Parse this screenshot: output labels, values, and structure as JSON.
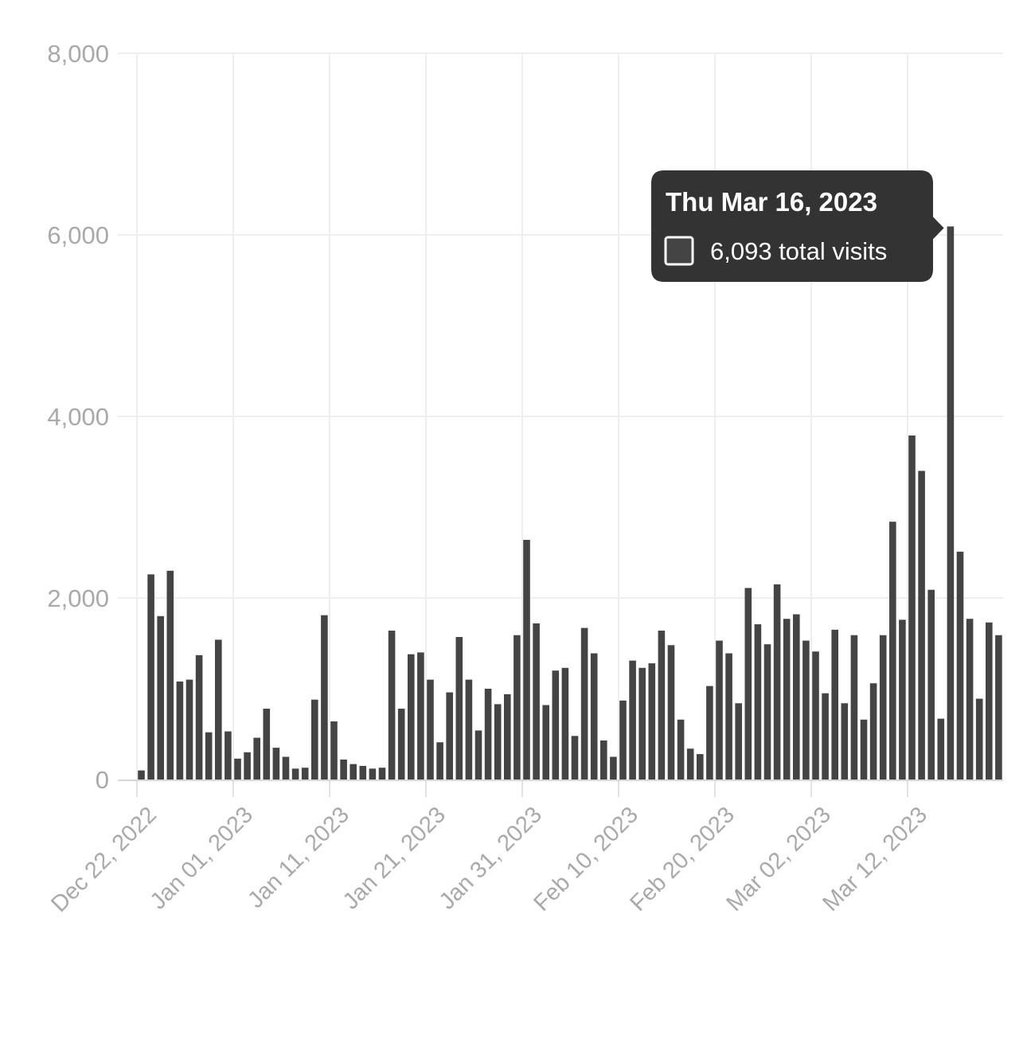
{
  "chart_data": {
    "type": "bar",
    "title": "",
    "xlabel": "",
    "ylabel": "",
    "ylim": [
      0,
      8000
    ],
    "y_ticks": [
      0,
      2000,
      4000,
      6000,
      8000
    ],
    "y_tick_labels": [
      "0",
      "2,000",
      "4,000",
      "6,000",
      "8,000"
    ],
    "x_tick_labels": [
      "Dec 22, 2022",
      "Jan 01, 2023",
      "Jan 11, 2023",
      "Jan 21, 2023",
      "Jan 31, 2023",
      "Feb 10, 2023",
      "Feb 20, 2023",
      "Mar 02, 2023",
      "Mar 12, 2023"
    ],
    "x_tick_day_index": [
      0,
      10,
      20,
      30,
      40,
      50,
      60,
      70,
      80
    ],
    "grid": true,
    "bar_color": "#444444",
    "start_date": "Dec 22, 2022",
    "series": [
      {
        "name": "total visits",
        "values": [
          100,
          2260,
          1800,
          2300,
          1080,
          1100,
          1370,
          520,
          1540,
          530,
          230,
          300,
          460,
          780,
          350,
          250,
          120,
          130,
          880,
          1810,
          640,
          220,
          170,
          150,
          120,
          130,
          1640,
          780,
          1380,
          1400,
          1100,
          410,
          960,
          1570,
          1100,
          540,
          1000,
          830,
          940,
          1590,
          2640,
          1720,
          820,
          1200,
          1230,
          480,
          1670,
          1390,
          430,
          250,
          870,
          1310,
          1230,
          1280,
          1640,
          1480,
          660,
          340,
          280,
          1030,
          1530,
          1390,
          840,
          2110,
          1710,
          1490,
          2150,
          1770,
          1820,
          1530,
          1410,
          950,
          1650,
          840,
          1590,
          660,
          1060,
          1590,
          2840,
          1760,
          3790,
          3400,
          2090,
          670,
          6093,
          2510,
          1770,
          890,
          1730,
          1590
        ]
      }
    ]
  },
  "tooltip": {
    "date": "Thu Mar 16, 2023",
    "value_text": "6,093 total visits",
    "bar_index": 84,
    "background": "#333333"
  }
}
